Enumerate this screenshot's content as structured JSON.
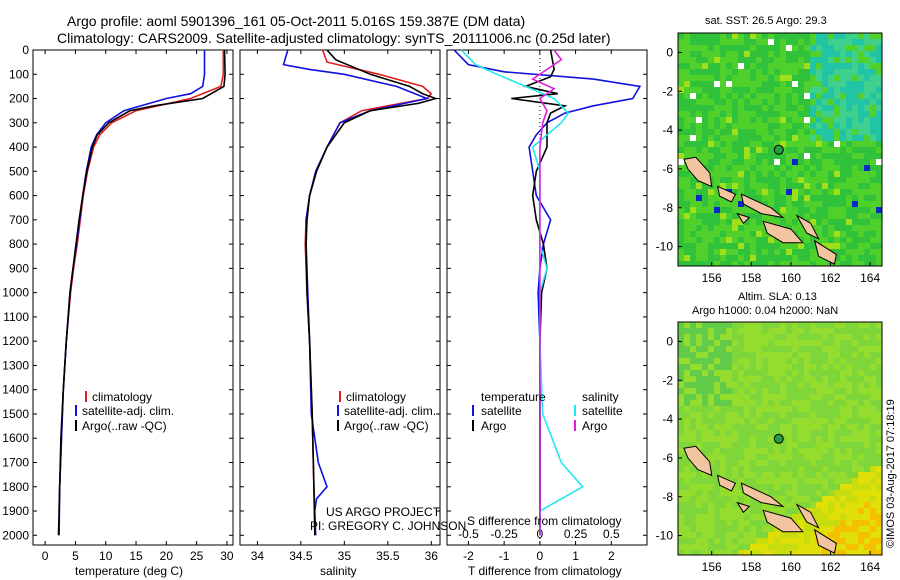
{
  "title": {
    "line1": "Argo profile: aoml 5901396_161 05-Oct-2011 5.016S 159.387E (DM data)",
    "line2": "Climatology: CARS2009. Satellite-adjusted climatology: synTS_20111006.nc (0.25d later)"
  },
  "colors": {
    "climatology": "#e02020",
    "satellite": "#1010e0",
    "argo": "#000000",
    "salinity_sat": "#20e8f0",
    "salinity_argo": "#e020e0"
  },
  "depth_axis": {
    "ticks": [
      "0",
      "100",
      "200",
      "300",
      "400",
      "500",
      "600",
      "700",
      "800",
      "900",
      "1000",
      "1100",
      "1200",
      "1300",
      "1400",
      "1500",
      "1600",
      "1700",
      "1800",
      "1900",
      "2000"
    ]
  },
  "chart_data": [
    {
      "type": "line",
      "name": "temperature-profile",
      "xlabel": "temperature (deg C)",
      "ylabel": "depth",
      "xlim": [
        -2,
        31
      ],
      "ylim": [
        2040,
        0
      ],
      "xticks": [
        "0",
        "5",
        "10",
        "15",
        "20",
        "25",
        "30"
      ],
      "legend": [
        "climatology",
        "satellite-adj. clim.",
        "Argo(..raw -QC)"
      ],
      "series": [
        {
          "name": "climatology",
          "depth": [
            0,
            100,
            150,
            200,
            250,
            300,
            350,
            400,
            500,
            600,
            700,
            800,
            900,
            1000,
            1200,
            1400,
            1600,
            1800,
            1900
          ],
          "values": [
            29.4,
            29.4,
            29,
            24,
            15,
            11,
            9,
            8,
            7,
            6.3,
            5.8,
            5.3,
            4.7,
            4.2,
            3.5,
            3.0,
            2.7,
            2.4,
            2.3
          ]
        },
        {
          "name": "satellite-adj. clim.",
          "depth": [
            0,
            100,
            150,
            180,
            200,
            250,
            300,
            350,
            400,
            500,
            600,
            700,
            800,
            900,
            1000,
            1200,
            1400,
            1600,
            1800,
            2000
          ],
          "values": [
            26.3,
            26.3,
            26,
            24,
            20,
            13,
            10,
            8.5,
            7.6,
            6.8,
            6.2,
            5.7,
            5.2,
            4.6,
            4.1,
            3.5,
            3.0,
            2.7,
            2.4,
            2.3
          ]
        },
        {
          "name": "Argo(..raw -QC)",
          "depth": [
            0,
            100,
            150,
            200,
            230,
            250,
            300,
            350,
            400,
            500,
            600,
            700,
            800,
            900,
            1000,
            1200,
            1400,
            1600,
            1800,
            2000
          ],
          "values": [
            29.6,
            29.7,
            29.5,
            26,
            18,
            14,
            10.5,
            8.6,
            7.8,
            6.9,
            6.2,
            5.6,
            5.1,
            4.6,
            4.1,
            3.5,
            3.0,
            2.6,
            2.4,
            2.2
          ]
        }
      ]
    },
    {
      "type": "line",
      "name": "salinity-profile",
      "xlabel": "salinity",
      "xlim": [
        33.8,
        36.1
      ],
      "ylim": [
        2040,
        0
      ],
      "xticks": [
        "34",
        "34.5",
        "35",
        "35.5",
        "36"
      ],
      "legend": [
        "climatology",
        "satellite-adj. clim.",
        "Argo(..raw -QC)"
      ],
      "annotation": [
        "US ARGO PROJECT",
        "PI: GREGORY C. JOHNSON"
      ],
      "series": [
        {
          "name": "climatology",
          "depth": [
            0,
            50,
            100,
            150,
            180,
            200,
            250,
            300,
            400,
            500,
            600,
            700,
            800,
            1000,
            1200,
            1500,
            1800,
            1900
          ],
          "values": [
            34.75,
            34.8,
            35.4,
            35.9,
            36.0,
            35.95,
            35.2,
            34.95,
            34.8,
            34.68,
            34.6,
            34.56,
            34.55,
            34.57,
            34.6,
            34.63,
            34.65,
            34.66
          ]
        },
        {
          "name": "satellite-adj. clim.",
          "depth": [
            0,
            60,
            80,
            100,
            150,
            200,
            250,
            300,
            400,
            500,
            600,
            700,
            800,
            1000,
            1200,
            1500,
            1700,
            1800,
            1850,
            1900,
            2000
          ],
          "values": [
            34.35,
            34.3,
            34.6,
            35.0,
            35.6,
            35.95,
            35.3,
            34.95,
            34.8,
            34.67,
            34.6,
            34.56,
            34.56,
            34.58,
            34.6,
            34.62,
            34.7,
            34.8,
            34.68,
            34.66,
            34.67
          ]
        },
        {
          "name": "Argo(..raw -QC)",
          "depth": [
            0,
            40,
            100,
            150,
            180,
            200,
            220,
            250,
            300,
            400,
            500,
            600,
            700,
            800,
            1000,
            1200,
            1500,
            1800,
            2000
          ],
          "values": [
            34.8,
            34.9,
            35.3,
            35.75,
            35.9,
            36.05,
            35.85,
            35.3,
            35.0,
            34.8,
            34.68,
            34.6,
            34.57,
            34.56,
            34.57,
            34.6,
            34.63,
            34.65,
            34.66
          ]
        }
      ]
    },
    {
      "type": "line",
      "name": "difference-profile",
      "xlabel": "T difference from climatology",
      "xlabel2": "S difference from climatology",
      "xlim": [
        -2.6,
        3.0
      ],
      "ylim": [
        2040,
        0
      ],
      "xticks": [
        "-2",
        "-1",
        "0",
        "1",
        "2"
      ],
      "xticks2": [
        "-0.5",
        "-0.25",
        "0",
        "0.25",
        "0.5"
      ],
      "legend_titles": [
        "temperature",
        "salinity"
      ],
      "legend": [
        "satellite",
        "Argo",
        "satellite",
        "Argo"
      ],
      "series": [
        {
          "name": "temperature-satellite",
          "depth": [
            0,
            60,
            90,
            120,
            150,
            200,
            230,
            260,
            300,
            350,
            400,
            500,
            600,
            700,
            800,
            900,
            1000,
            1200,
            1500,
            1800,
            2000
          ],
          "values": [
            -2.4,
            -2.0,
            -1.0,
            1.5,
            2.8,
            2.6,
            1.5,
            0.7,
            0.2,
            -0.1,
            -0.3,
            -0.2,
            -0.1,
            0.3,
            0.1,
            0.0,
            -0.05,
            0.0,
            0.0,
            0.0,
            0.0
          ]
        },
        {
          "name": "temperature-argo",
          "depth": [
            0,
            80,
            110,
            150,
            180,
            200,
            230,
            260,
            300,
            400,
            500,
            600,
            700,
            800,
            900,
            1000,
            1200,
            1500,
            1800,
            2000
          ],
          "values": [
            0.3,
            0.4,
            0.3,
            -0.4,
            0.5,
            -0.8,
            0.7,
            0.3,
            0.2,
            0.2,
            -0.1,
            -0.2,
            -0.1,
            0.1,
            0.2,
            0.05,
            0.0,
            0.0,
            0.0,
            0.0
          ]
        },
        {
          "name": "salinity-satellite",
          "depth": [
            0,
            60,
            100,
            150,
            200,
            260,
            300,
            350,
            400,
            500,
            600,
            700,
            800,
            900,
            1000,
            1200,
            1500,
            1700,
            1800,
            1900,
            2000
          ],
          "values": [
            -0.55,
            -0.45,
            -0.3,
            -0.1,
            0.1,
            0.2,
            0.15,
            0.05,
            -0.05,
            0.0,
            0.0,
            0.0,
            0.0,
            0.05,
            0.0,
            0.0,
            0.02,
            0.15,
            0.3,
            0.0,
            0.0
          ]
        },
        {
          "name": "salinity-argo",
          "depth": [
            0,
            40,
            80,
            120,
            160,
            200,
            250,
            300,
            400,
            500,
            600,
            700,
            800,
            900,
            1000,
            1200,
            1500,
            1800,
            2000
          ],
          "values": [
            0.1,
            0.15,
            0.05,
            -0.05,
            0.1,
            0.0,
            0.05,
            0.02,
            0.0,
            0.0,
            0.0,
            0.0,
            0.0,
            0.0,
            0.0,
            0.0,
            0.0,
            0.0,
            0.0
          ]
        }
      ]
    },
    {
      "type": "heatmap",
      "name": "sst-map",
      "title": "sat. SST: 26.5 Argo: 29.3",
      "xlim": [
        154.3,
        164.6
      ],
      "ylim": [
        -11,
        1
      ],
      "xticks": [
        "156",
        "158",
        "160",
        "162",
        "164"
      ],
      "yticks": [
        "0",
        "-2",
        "-4",
        "-6",
        "-8",
        "-10"
      ],
      "float_position": {
        "lon": 159.387,
        "lat": -5.016
      }
    },
    {
      "type": "heatmap",
      "name": "sla-map",
      "title": "Altim. SLA: 0.13",
      "subtitle": "Argo h1000: 0.04 h2000: NaN",
      "xlim": [
        154.3,
        164.6
      ],
      "ylim": [
        -11,
        1
      ],
      "xticks": [
        "156",
        "158",
        "160",
        "162",
        "164"
      ],
      "yticks": [
        "0",
        "-2",
        "-4",
        "-6",
        "-8",
        "-10"
      ],
      "float_position": {
        "lon": 159.387,
        "lat": -5.016
      }
    }
  ],
  "watermark": "©IMOS 03-Aug-2017 07:18:19"
}
